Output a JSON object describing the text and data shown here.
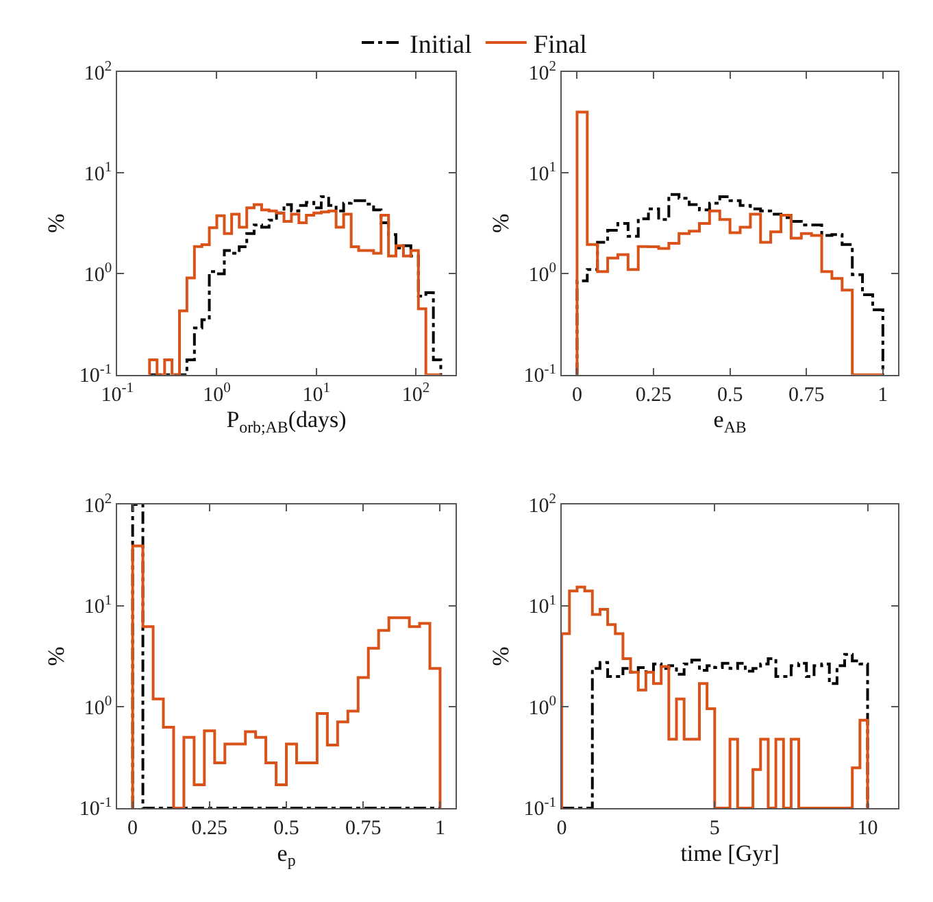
{
  "chart_data": [
    {
      "type": "histogram",
      "xlabel": "P$_{orb;AB}$(days)",
      "ylabel": "%",
      "log": "xy",
      "legend": "top",
      "bins": [
        0.211,
        0.251,
        0.299,
        0.355,
        0.422,
        0.501,
        0.596,
        0.708,
        0.841,
        1,
        1.19,
        1.41,
        1.68,
        2.0,
        2.37,
        2.82,
        3.35,
        3.98,
        4.73,
        5.62,
        6.68,
        7.94,
        9.44,
        11.2,
        13.3,
        15.8,
        18.8,
        22.4,
        26.6,
        31.6,
        37.6,
        44.7,
        53.1,
        63.1,
        75.0,
        89.1,
        106,
        126,
        150,
        178
      ],
      "series": [
        {
          "name": "Initial",
          "color": "#000000",
          "line_style": "dashed",
          "values": [
            null,
            null,
            null,
            null,
            null,
            0.14,
            0.29,
            0.35,
            1.05,
            1.0,
            1.7,
            1.6,
            1.85,
            2.5,
            3.05,
            2.9,
            3.4,
            4.0,
            4.85,
            4.2,
            4.75,
            5.1,
            4.5,
            5.8,
            4.75,
            4.2,
            5.0,
            5.3,
            5.3,
            4.9,
            4.3,
            3.2,
            2.45,
            1.8,
            1.9,
            1.5,
            0.6,
            0.65,
            0.14
          ]
        },
        {
          "name": "Final",
          "color": "#d95319",
          "line_style": "solid",
          "values": [
            0.14,
            null,
            0.14,
            null,
            0.43,
            0.91,
            1.86,
            1.94,
            2.86,
            3.76,
            2.5,
            3.9,
            2.9,
            4.5,
            4.85,
            4.3,
            4.2,
            4.0,
            3.3,
            3.9,
            3.2,
            3.8,
            4.0,
            4.1,
            4.2,
            2.9,
            3.9,
            1.85,
            1.7,
            1.7,
            1.6,
            3.8,
            1.5,
            1.9,
            1.5,
            1.7,
            0.45,
            null,
            null
          ]
        }
      ],
      "xlim": [
        0.1,
        250
      ],
      "xticks": [
        {
          "value": 0.1,
          "label": "10$^{-1}$"
        },
        {
          "value": 1,
          "label": "10$^{0}$"
        },
        {
          "value": 10,
          "label": "10$^{1}$"
        },
        {
          "value": 100,
          "label": "10$^{2}$"
        }
      ],
      "ylim": [
        0.1,
        100
      ],
      "yticks": [
        {
          "value": 0.1,
          "label": "10$^{-1}$"
        },
        {
          "value": 1,
          "label": "10$^{0}$"
        },
        {
          "value": 10,
          "label": "10$^{1}$"
        },
        {
          "value": 100,
          "label": "10$^{2}$"
        }
      ]
    },
    {
      "type": "histogram",
      "xlabel": "e$_{AB}$",
      "ylabel": "%",
      "log": "y",
      "bins": [
        0,
        0.0333,
        0.0667,
        0.1,
        0.1333,
        0.1667,
        0.2,
        0.2333,
        0.2667,
        0.3,
        0.3333,
        0.3667,
        0.4,
        0.4333,
        0.4667,
        0.5,
        0.5333,
        0.5667,
        0.6,
        0.6333,
        0.6667,
        0.7,
        0.7333,
        0.7667,
        0.8,
        0.8333,
        0.8667,
        0.9,
        0.9333,
        0.9667,
        1
      ],
      "series": [
        {
          "color": "#000000",
          "line_style": "dashed",
          "values": [
            0.85,
            1.1,
            2.05,
            2.7,
            3.15,
            2.35,
            3.5,
            4.4,
            3.45,
            6.1,
            5.6,
            4.85,
            4.3,
            5.0,
            5.8,
            5.3,
            4.75,
            4.4,
            4.2,
            3.9,
            3.6,
            3.3,
            3.05,
            3.05,
            2.4,
            2.45,
            1.95,
            0.98,
            0.62,
            0.44
          ]
        },
        {
          "color": "#d95319",
          "line_style": "solid",
          "values": [
            40,
            1.95,
            1.05,
            1.43,
            1.55,
            1.1,
            1.86,
            1.85,
            1.78,
            2.0,
            2.5,
            2.65,
            3.15,
            4.2,
            3.45,
            2.55,
            2.9,
            3.9,
            2.05,
            2.6,
            3.8,
            2.25,
            2.5,
            2.4,
            1.05,
            0.9,
            0.69,
            null,
            null,
            null
          ]
        }
      ],
      "xlim": [
        -0.05,
        1.05
      ],
      "xticks": [
        0,
        0.25,
        0.5,
        0.75,
        1
      ],
      "ylim": [
        0.1,
        100
      ],
      "yticks": [
        {
          "value": 0.1,
          "label": "10$^{-1}$"
        },
        {
          "value": 1,
          "label": "10$^{0}$"
        },
        {
          "value": 10,
          "label": "10$^{1}$"
        },
        {
          "value": 100,
          "label": "10$^{2}$"
        }
      ]
    },
    {
      "type": "histogram",
      "xlabel": "e$_{p}$",
      "ylabel": "%",
      "log": "y",
      "bins": [
        0,
        0.0333,
        0.0667,
        0.1,
        0.1333,
        0.1667,
        0.2,
        0.2333,
        0.2667,
        0.3,
        0.3333,
        0.3667,
        0.4,
        0.4333,
        0.4667,
        0.5,
        0.5333,
        0.5667,
        0.6,
        0.6333,
        0.6667,
        0.7,
        0.7333,
        0.7667,
        0.8,
        0.8333,
        0.8667,
        0.9,
        0.9333,
        0.9667,
        1
      ],
      "series": [
        {
          "color": "#000000",
          "line_style": "dashed",
          "values": [
            100,
            null,
            null,
            null,
            null,
            null,
            null,
            null,
            null,
            null,
            null,
            null,
            null,
            null,
            null,
            null,
            null,
            null,
            null,
            null,
            null,
            null,
            null,
            null,
            null,
            null,
            null,
            null,
            null,
            null
          ]
        },
        {
          "color": "#d95319",
          "line_style": "solid",
          "values": [
            39,
            6.2,
            1.2,
            0.63,
            null,
            0.5,
            0.17,
            0.58,
            0.28,
            0.43,
            0.43,
            0.57,
            0.5,
            0.28,
            0.17,
            0.43,
            0.28,
            0.28,
            0.86,
            0.42,
            0.71,
            0.91,
            1.95,
            3.8,
            5.7,
            7.6,
            7.6,
            6.2,
            6.7,
            2.4
          ]
        }
      ],
      "xlim": [
        -0.05,
        1.05
      ],
      "xticks": [
        0,
        0.25,
        0.5,
        0.75,
        1
      ],
      "ylim": [
        0.1,
        100
      ],
      "yticks": [
        {
          "value": 0.1,
          "label": "10$^{-1}$"
        },
        {
          "value": 1,
          "label": "10$^{0}$"
        },
        {
          "value": 10,
          "label": "10$^{1}$"
        },
        {
          "value": 100,
          "label": "10$^{2}$"
        }
      ]
    },
    {
      "type": "histogram",
      "xlabel": "time [Gyr]",
      "ylabel": "%",
      "log": "y",
      "bins": [
        0,
        0.25,
        0.5,
        0.75,
        1,
        1.25,
        1.5,
        1.75,
        2,
        2.25,
        2.5,
        2.75,
        3,
        3.25,
        3.5,
        3.75,
        4,
        4.25,
        4.5,
        4.75,
        5,
        5.25,
        5.5,
        5.75,
        6,
        6.25,
        6.5,
        6.75,
        7,
        7.25,
        7.5,
        7.75,
        8,
        8.25,
        8.5,
        8.75,
        9,
        9.25,
        9.5,
        9.75,
        10
      ],
      "series": [
        {
          "color": "#000000",
          "line_style": "dashed",
          "values": [
            null,
            null,
            null,
            null,
            2.4,
            2.75,
            2.0,
            2.0,
            2.4,
            2.2,
            2.45,
            2.2,
            2.65,
            2.4,
            2.55,
            2.1,
            2.65,
            2.9,
            2.3,
            2.55,
            2.45,
            2.7,
            2.4,
            2.7,
            2.25,
            2.4,
            2.65,
            3.0,
            2.0,
            2.0,
            2.55,
            2.7,
            2.0,
            2.55,
            2.65,
            1.7,
            2.55,
            3.3,
            2.85,
            2.65
          ]
        },
        {
          "color": "#d95319",
          "line_style": "solid",
          "values": [
            5.3,
            14,
            15.3,
            14,
            8.2,
            9.2,
            6.5,
            5.3,
            3.0,
            2.2,
            1.47,
            2.2,
            1.7,
            2.5,
            0.48,
            1.2,
            0.48,
            0.48,
            1.7,
            0.96,
            null,
            null,
            0.48,
            null,
            null,
            0.24,
            0.48,
            null,
            0.48,
            null,
            0.48,
            null,
            null,
            null,
            null,
            null,
            null,
            null,
            0.25,
            0.74
          ]
        }
      ],
      "xlim": [
        0,
        11
      ],
      "xticks": [
        0,
        5,
        10
      ],
      "ylim": [
        0.1,
        100
      ],
      "yticks": [
        {
          "value": 0.1,
          "label": "10$^{-1}$"
        },
        {
          "value": 1,
          "label": "10$^{0}$"
        },
        {
          "value": 10,
          "label": "10$^{1}$"
        },
        {
          "value": 100,
          "label": "10$^{2}$"
        }
      ]
    }
  ]
}
